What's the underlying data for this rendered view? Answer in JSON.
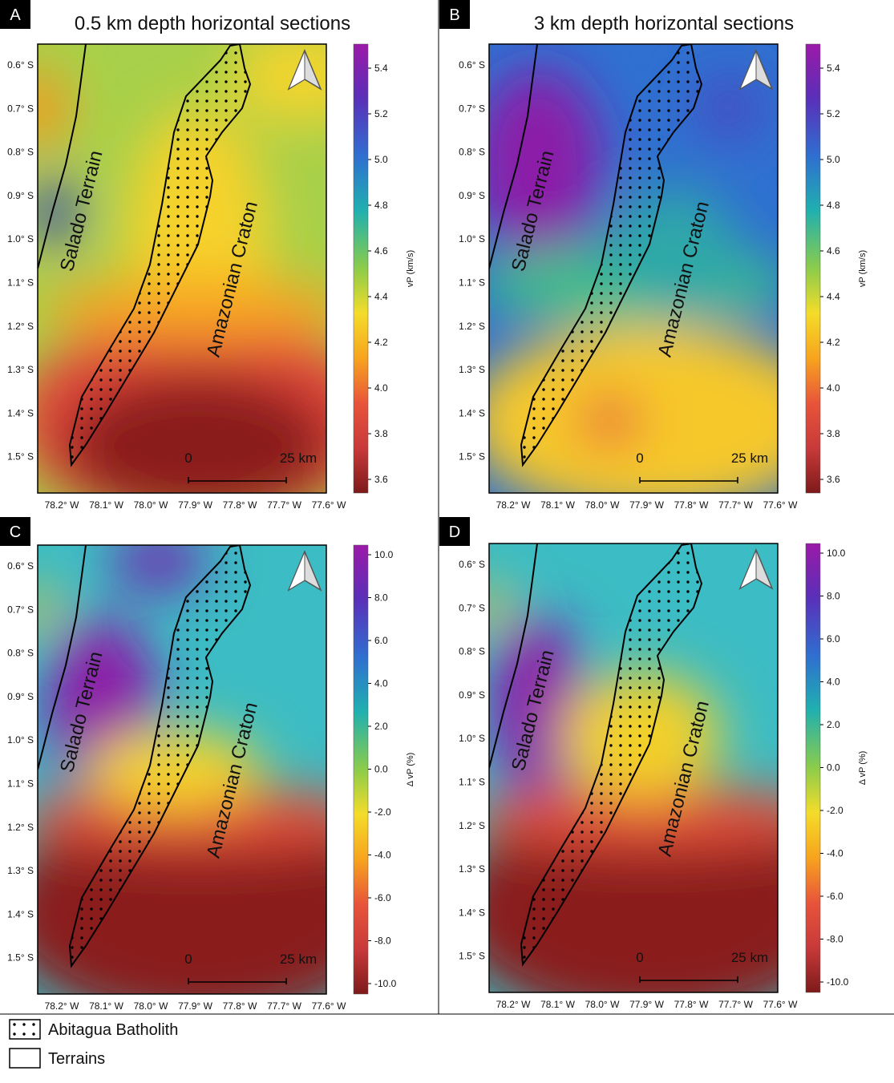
{
  "panels": [
    {
      "label": "A",
      "title": "0.5 km depth horizontal sections",
      "lat_ticks": [
        "0.6° S",
        "0.7° S",
        "0.8° S",
        "0.9° S",
        "1.0° S",
        "1.1° S",
        "1.2° S",
        "1.3° S",
        "1.4° S",
        "1.5° S"
      ],
      "lon_ticks": [
        "78.2° W",
        "78.1° W",
        "78.0° W",
        "77.9° W",
        "77.8° W",
        "77.7° W",
        "77.6° W"
      ],
      "colorbar": {
        "label": "vP (km/s)",
        "ticks": [
          "5.4",
          "5.2",
          "5.0",
          "4.8",
          "4.6",
          "4.4",
          "4.2",
          "4.0",
          "3.8",
          "3.6"
        ]
      },
      "terrain_label": "Salado Terrain",
      "craton_label": "Amazonian Craton",
      "scale": {
        "start": "0",
        "end": "25 km"
      }
    },
    {
      "label": "B",
      "title": "3 km depth horizontal sections",
      "lat_ticks": [
        "0.6° S",
        "0.7° S",
        "0.8° S",
        "0.9° S",
        "1.0° S",
        "1.1° S",
        "1.2° S",
        "1.3° S",
        "1.4° S",
        "1.5° S"
      ],
      "lon_ticks": [
        "78.2° W",
        "78.1° W",
        "78.0° W",
        "77.9° W",
        "77.8° W",
        "77.7° W",
        "77.6° W"
      ],
      "colorbar": {
        "label": "vP (km/s)",
        "ticks": [
          "5.4",
          "5.2",
          "5.0",
          "4.8",
          "4.6",
          "4.4",
          "4.2",
          "4.0",
          "3.8",
          "3.6"
        ]
      },
      "terrain_label": "Salado Terrain",
      "craton_label": "Amazonian Craton",
      "scale": {
        "start": "0",
        "end": "25 km"
      }
    },
    {
      "label": "C",
      "lat_ticks": [
        "0.6° S",
        "0.7° S",
        "0.8° S",
        "0.9° S",
        "1.0° S",
        "1.1° S",
        "1.2° S",
        "1.3° S",
        "1.4° S",
        "1.5° S"
      ],
      "lon_ticks": [
        "78.2° W",
        "78.1° W",
        "78.0° W",
        "77.9° W",
        "77.8° W",
        "77.7° W",
        "77.6° W"
      ],
      "colorbar": {
        "label": "Δ vP (%)",
        "ticks": [
          "10.0",
          "8.0",
          "6.0",
          "4.0",
          "2.0",
          "0.0",
          "-2.0",
          "-4.0",
          "-6.0",
          "-8.0",
          "-10.0"
        ]
      },
      "terrain_label": "Salado Terrain",
      "craton_label": "Amazonian Craton",
      "scale": {
        "start": "0",
        "end": "25 km"
      }
    },
    {
      "label": "D",
      "lat_ticks": [
        "0.6° S",
        "0.7° S",
        "0.8° S",
        "0.9° S",
        "1.0° S",
        "1.1° S",
        "1.2° S",
        "1.3° S",
        "1.4° S",
        "1.5° S"
      ],
      "lon_ticks": [
        "78.2° W",
        "78.1° W",
        "78.0° W",
        "77.9° W",
        "77.8° W",
        "77.7° W",
        "77.6° W"
      ],
      "colorbar": {
        "label": "Δ vP (%)",
        "ticks": [
          "10.0",
          "8.0",
          "6.0",
          "4.0",
          "2.0",
          "0.0",
          "-2.0",
          "-4.0",
          "-6.0",
          "-8.0",
          "-10.0"
        ]
      },
      "terrain_label": "Salado Terrain",
      "craton_label": "Amazonian Craton",
      "scale": {
        "start": "0",
        "end": "25 km"
      }
    }
  ],
  "legend": {
    "items": [
      "Abitagua Batholith",
      "Terrains"
    ]
  }
}
